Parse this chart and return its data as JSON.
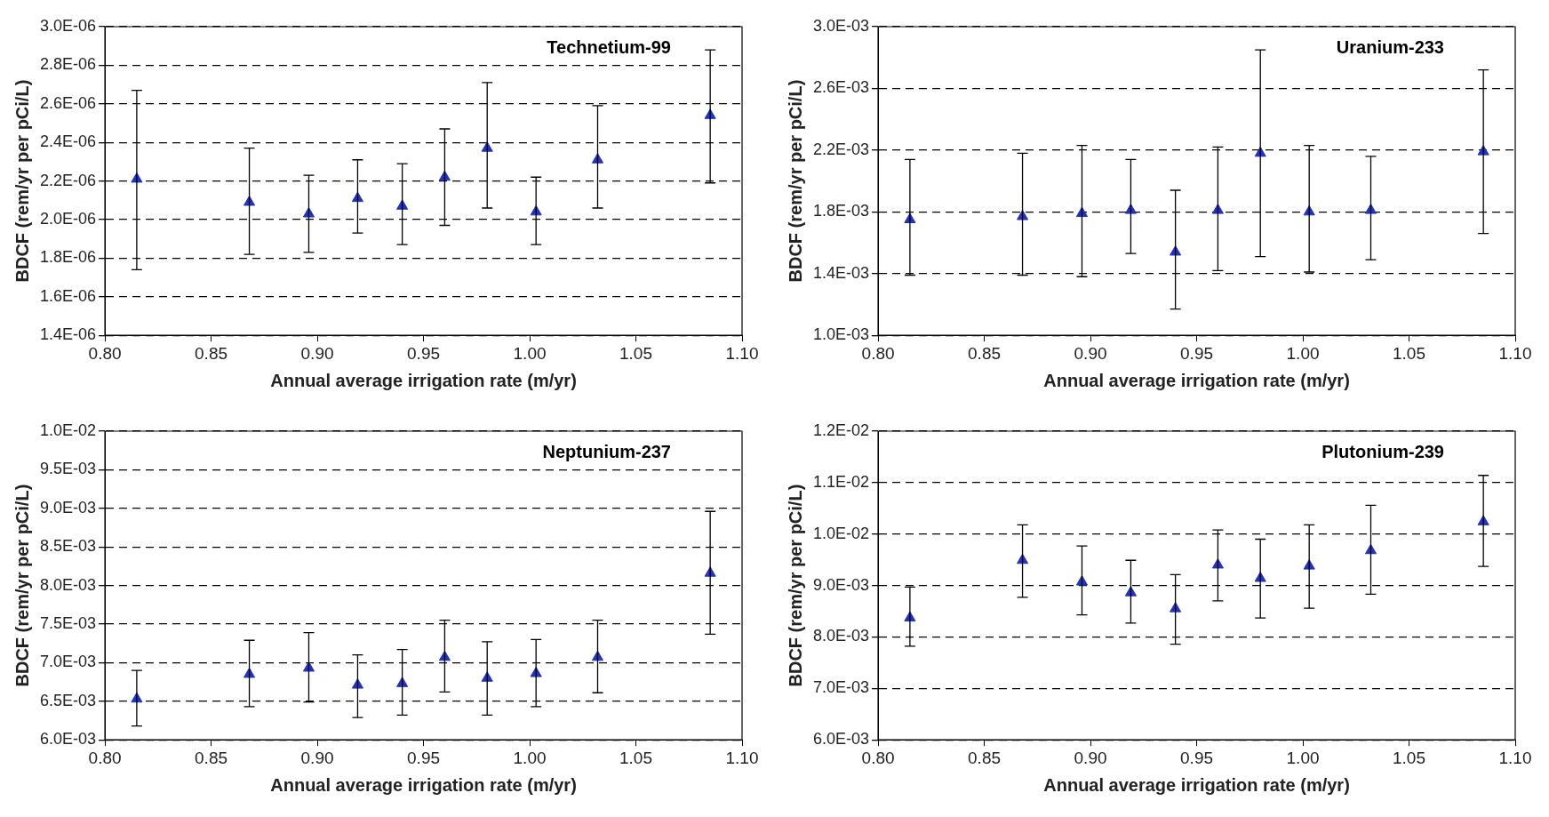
{
  "chart_data": [
    {
      "type": "scatter",
      "title": "Technetium-99",
      "xlabel": "Annual average irrigation rate (m/yr)",
      "ylabel": "BDCF (rem/yr per pCi/L)",
      "marker": "triangle",
      "grid": "y",
      "x": [
        0.815,
        0.868,
        0.896,
        0.919,
        0.94,
        0.96,
        0.98,
        1.003,
        1.032,
        1.085
      ],
      "series": [
        {
          "color": "#2233bb",
          "values": [
            2.21e-06,
            2.09e-06,
            2.03e-06,
            2.11e-06,
            2.07e-06,
            2.22e-06,
            2.37e-06,
            2.04e-06,
            2.31e-06,
            2.54e-06
          ],
          "errors": [
            [
              1.74e-06,
              2.67e-06
            ],
            [
              1.82e-06,
              2.37e-06
            ],
            [
              1.83e-06,
              2.23e-06
            ],
            [
              1.93e-06,
              2.31e-06
            ],
            [
              1.87e-06,
              2.29e-06
            ],
            [
              1.97e-06,
              2.47e-06
            ],
            [
              2.06e-06,
              2.71e-06
            ],
            [
              1.87e-06,
              2.22e-06
            ],
            [
              2.06e-06,
              2.59e-06
            ],
            [
              2.19e-06,
              2.88e-06
            ]
          ]
        }
      ],
      "xlim": [
        0.8,
        1.1
      ],
      "xticks": [
        {
          "value": 0.8,
          "label": "0.80"
        },
        {
          "value": 0.85,
          "label": "0.85"
        },
        {
          "value": 0.9,
          "label": "0.90"
        },
        {
          "value": 0.95,
          "label": "0.95"
        },
        {
          "value": 1.0,
          "label": "1.00"
        },
        {
          "value": 1.05,
          "label": "1.05"
        },
        {
          "value": 1.1,
          "label": "1.10"
        }
      ],
      "ylim": [
        1.4e-06,
        3e-06
      ],
      "yticks": [
        {
          "value": 1.4e-06,
          "label": "1.4E-06"
        },
        {
          "value": 1.6e-06,
          "label": "1.6E-06"
        },
        {
          "value": 1.8e-06,
          "label": "1.8E-06"
        },
        {
          "value": 2e-06,
          "label": "2.0E-06"
        },
        {
          "value": 2.2e-06,
          "label": "2.2E-06"
        },
        {
          "value": 2.4e-06,
          "label": "2.4E-06"
        },
        {
          "value": 2.6e-06,
          "label": "2.6E-06"
        },
        {
          "value": 2.8e-06,
          "label": "2.8E-06"
        },
        {
          "value": 3e-06,
          "label": "3.0E-06"
        }
      ]
    },
    {
      "type": "scatter",
      "title": "Uranium-233",
      "xlabel": "Annual average irrigation rate (m/yr)",
      "ylabel": "BDCF (rem/yr per pCi/L)",
      "marker": "triangle",
      "grid": "y",
      "x": [
        0.815,
        0.868,
        0.896,
        0.919,
        0.94,
        0.96,
        0.98,
        1.003,
        1.032,
        1.085
      ],
      "series": [
        {
          "color": "#2233bb",
          "values": [
            0.00175,
            0.00177,
            0.00179,
            0.00181,
            0.00154,
            0.00181,
            0.00218,
            0.0018,
            0.00181,
            0.00219
          ],
          "errors": [
            [
              0.00139,
              0.00214
            ],
            [
              0.00139,
              0.00218
            ],
            [
              0.00138,
              0.00223
            ],
            [
              0.00153,
              0.00214
            ],
            [
              0.00117,
              0.00194
            ],
            [
              0.00142,
              0.00222
            ],
            [
              0.00151,
              0.00285
            ],
            [
              0.00141,
              0.00223
            ],
            [
              0.00149,
              0.00216
            ],
            [
              0.00166,
              0.00272
            ]
          ]
        }
      ],
      "xlim": [
        0.8,
        1.1
      ],
      "xticks": [
        {
          "value": 0.8,
          "label": "0.80"
        },
        {
          "value": 0.85,
          "label": "0.85"
        },
        {
          "value": 0.9,
          "label": "0.90"
        },
        {
          "value": 0.95,
          "label": "0.95"
        },
        {
          "value": 1.0,
          "label": "1.00"
        },
        {
          "value": 1.05,
          "label": "1.05"
        },
        {
          "value": 1.1,
          "label": "1.10"
        }
      ],
      "ylim": [
        0.001,
        0.003
      ],
      "yticks": [
        {
          "value": 0.001,
          "label": "1.0E-03"
        },
        {
          "value": 0.0014,
          "label": "1.4E-03"
        },
        {
          "value": 0.0018,
          "label": "1.8E-03"
        },
        {
          "value": 0.0022,
          "label": "2.2E-03"
        },
        {
          "value": 0.0026,
          "label": "2.6E-03"
        },
        {
          "value": 0.003,
          "label": "3.0E-03"
        }
      ]
    },
    {
      "type": "scatter",
      "title": "Neptunium-237",
      "xlabel": "Annual average irrigation rate (m/yr)",
      "ylabel": "BDCF (rem/yr per pCi/L)",
      "marker": "triangle",
      "grid": "y",
      "x": [
        0.815,
        0.868,
        0.896,
        0.919,
        0.94,
        0.96,
        0.98,
        1.003,
        1.032,
        1.085
      ],
      "series": [
        {
          "color": "#2233bb",
          "values": [
            0.00653,
            0.00685,
            0.00693,
            0.00671,
            0.00673,
            0.00707,
            0.0068,
            0.00686,
            0.00707,
            0.00816
          ],
          "errors": [
            [
              0.00618,
              0.0069
            ],
            [
              0.00643,
              0.00729
            ],
            [
              0.00649,
              0.00739
            ],
            [
              0.00629,
              0.0071
            ],
            [
              0.00632,
              0.00717
            ],
            [
              0.00662,
              0.00755
            ],
            [
              0.00632,
              0.00727
            ],
            [
              0.00643,
              0.0073
            ],
            [
              0.00661,
              0.00755
            ],
            [
              0.00737,
              0.00896
            ]
          ]
        }
      ],
      "xlim": [
        0.8,
        1.1
      ],
      "xticks": [
        {
          "value": 0.8,
          "label": "0.80"
        },
        {
          "value": 0.85,
          "label": "0.85"
        },
        {
          "value": 0.9,
          "label": "0.90"
        },
        {
          "value": 0.95,
          "label": "0.95"
        },
        {
          "value": 1.0,
          "label": "1.00"
        },
        {
          "value": 1.05,
          "label": "1.05"
        },
        {
          "value": 1.1,
          "label": "1.10"
        }
      ],
      "ylim": [
        0.006,
        0.01
      ],
      "yticks": [
        {
          "value": 0.006,
          "label": "6.0E-03"
        },
        {
          "value": 0.0065,
          "label": "6.5E-03"
        },
        {
          "value": 0.007,
          "label": "7.0E-03"
        },
        {
          "value": 0.0075,
          "label": "7.5E-03"
        },
        {
          "value": 0.008,
          "label": "8.0E-03"
        },
        {
          "value": 0.0085,
          "label": "8.5E-03"
        },
        {
          "value": 0.009,
          "label": "9.0E-03"
        },
        {
          "value": 0.0095,
          "label": "9.5E-03"
        },
        {
          "value": 0.01,
          "label": "1.0E-02"
        }
      ]
    },
    {
      "type": "scatter",
      "title": "Plutonium-239",
      "xlabel": "Annual average irrigation rate (m/yr)",
      "ylabel": "BDCF (rem/yr per pCi/L)",
      "marker": "triangle",
      "grid": "y",
      "x": [
        0.815,
        0.868,
        0.896,
        0.919,
        0.94,
        0.96,
        0.98,
        1.003,
        1.032,
        1.085
      ],
      "series": [
        {
          "color": "#2233bb",
          "values": [
            0.00837,
            0.00949,
            0.00907,
            0.00886,
            0.00855,
            0.0094,
            0.00914,
            0.00938,
            0.00968,
            0.01024
          ],
          "errors": [
            [
              0.00782,
              0.00897
            ],
            [
              0.00877,
              0.01018
            ],
            [
              0.00843,
              0.00977
            ],
            [
              0.00827,
              0.00949
            ],
            [
              0.00786,
              0.00921
            ],
            [
              0.0087,
              0.01008
            ],
            [
              0.00837,
              0.0099
            ],
            [
              0.00856,
              0.01018
            ],
            [
              0.00883,
              0.01056
            ],
            [
              0.00937,
              0.01114
            ]
          ]
        }
      ],
      "xlim": [
        0.8,
        1.1
      ],
      "xticks": [
        {
          "value": 0.8,
          "label": "0.80"
        },
        {
          "value": 0.85,
          "label": "0.85"
        },
        {
          "value": 0.9,
          "label": "0.90"
        },
        {
          "value": 0.95,
          "label": "0.95"
        },
        {
          "value": 1.0,
          "label": "1.00"
        },
        {
          "value": 1.05,
          "label": "1.05"
        },
        {
          "value": 1.1,
          "label": "1.10"
        }
      ],
      "ylim": [
        0.006,
        0.012
      ],
      "yticks": [
        {
          "value": 0.006,
          "label": "6.0E-03"
        },
        {
          "value": 0.007,
          "label": "7.0E-03"
        },
        {
          "value": 0.008,
          "label": "8.0E-03"
        },
        {
          "value": 0.009,
          "label": "9.0E-03"
        },
        {
          "value": 0.01,
          "label": "1.0E-02"
        },
        {
          "value": 0.011,
          "label": "1.1E-02"
        },
        {
          "value": 0.012,
          "label": "1.2E-02"
        }
      ]
    }
  ]
}
